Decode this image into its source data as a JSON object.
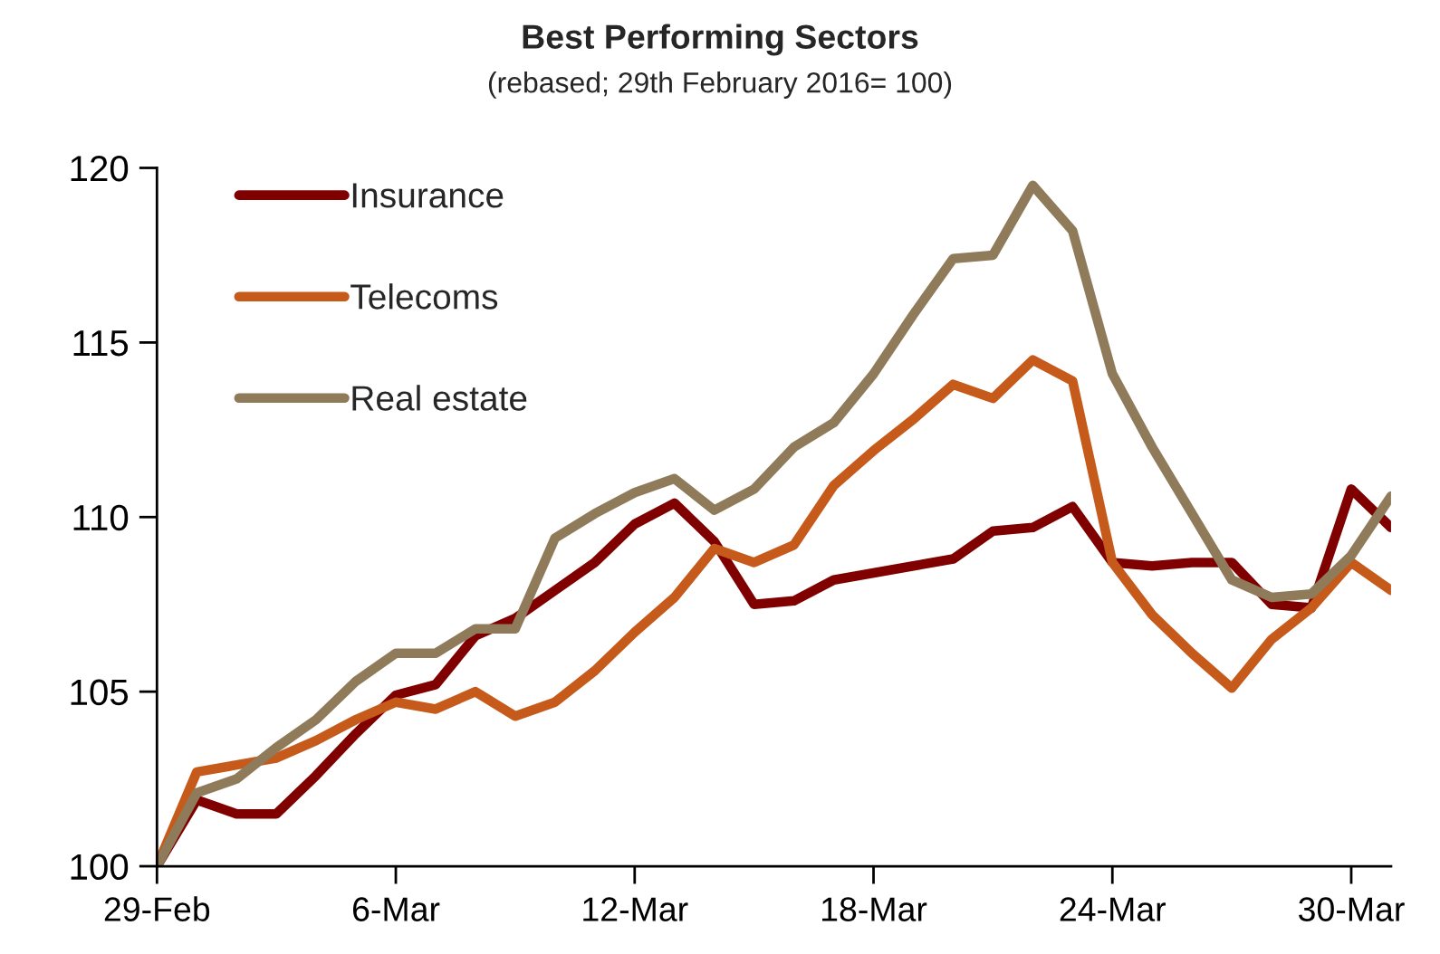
{
  "chart_data": {
    "type": "line",
    "title": "Best Performing Sectors",
    "subtitle": "(rebased; 29th February 2016= 100)",
    "x": [
      "2016-02-29",
      "2016-03-01",
      "2016-03-02",
      "2016-03-03",
      "2016-03-04",
      "2016-03-05",
      "2016-03-06",
      "2016-03-07",
      "2016-03-08",
      "2016-03-09",
      "2016-03-10",
      "2016-03-11",
      "2016-03-12",
      "2016-03-13",
      "2016-03-14",
      "2016-03-15",
      "2016-03-16",
      "2016-03-17",
      "2016-03-18",
      "2016-03-19",
      "2016-03-20",
      "2016-03-21",
      "2016-03-22",
      "2016-03-23",
      "2016-03-24",
      "2016-03-25",
      "2016-03-26",
      "2016-03-27",
      "2016-03-28",
      "2016-03-29",
      "2016-03-30",
      "2016-03-31"
    ],
    "series": [
      {
        "name": "Insurance",
        "color": "#800000",
        "values": [
          100,
          101.9,
          101.5,
          101.5,
          102.6,
          103.8,
          104.9,
          105.2,
          106.6,
          107.1,
          107.9,
          108.7,
          109.8,
          110.4,
          109.3,
          107.5,
          107.6,
          108.2,
          108.4,
          108.6,
          108.8,
          109.6,
          109.7,
          110.3,
          108.7,
          108.6,
          108.7,
          108.7,
          107.5,
          107.4,
          110.8,
          109.7
        ]
      },
      {
        "name": "Telecoms",
        "color": "#c55a1b",
        "values": [
          100,
          102.7,
          102.9,
          103.1,
          103.6,
          104.2,
          104.7,
          104.5,
          105.0,
          104.3,
          104.7,
          105.6,
          106.7,
          107.7,
          109.1,
          108.7,
          109.2,
          110.9,
          111.9,
          112.8,
          113.8,
          113.4,
          114.5,
          113.9,
          108.7,
          107.2,
          106.1,
          105.1,
          106.5,
          107.4,
          108.7,
          107.9
        ]
      },
      {
        "name": "Real estate",
        "color": "#8f7b5a",
        "values": [
          100,
          102.1,
          102.5,
          103.4,
          104.2,
          105.3,
          106.1,
          106.1,
          106.8,
          106.8,
          109.4,
          110.1,
          110.7,
          111.1,
          110.2,
          110.8,
          112.0,
          112.7,
          114.1,
          115.8,
          117.4,
          117.5,
          119.5,
          118.2,
          114.1,
          112.0,
          110.1,
          108.2,
          107.7,
          107.8,
          108.9,
          110.6
        ]
      }
    ],
    "xlim": [
      "2016-02-29",
      "2016-03-31"
    ],
    "xticks": [
      {
        "value": "2016-02-29",
        "label": "29-Feb"
      },
      {
        "value": "2016-03-06",
        "label": "6-Mar"
      },
      {
        "value": "2016-03-12",
        "label": "12-Mar"
      },
      {
        "value": "2016-03-18",
        "label": "18-Mar"
      },
      {
        "value": "2016-03-24",
        "label": "24-Mar"
      },
      {
        "value": "2016-03-30",
        "label": "30-Mar"
      }
    ],
    "ylim": [
      100,
      120
    ],
    "yticks": [
      100,
      105,
      110,
      115,
      120
    ],
    "legend": "top left"
  }
}
